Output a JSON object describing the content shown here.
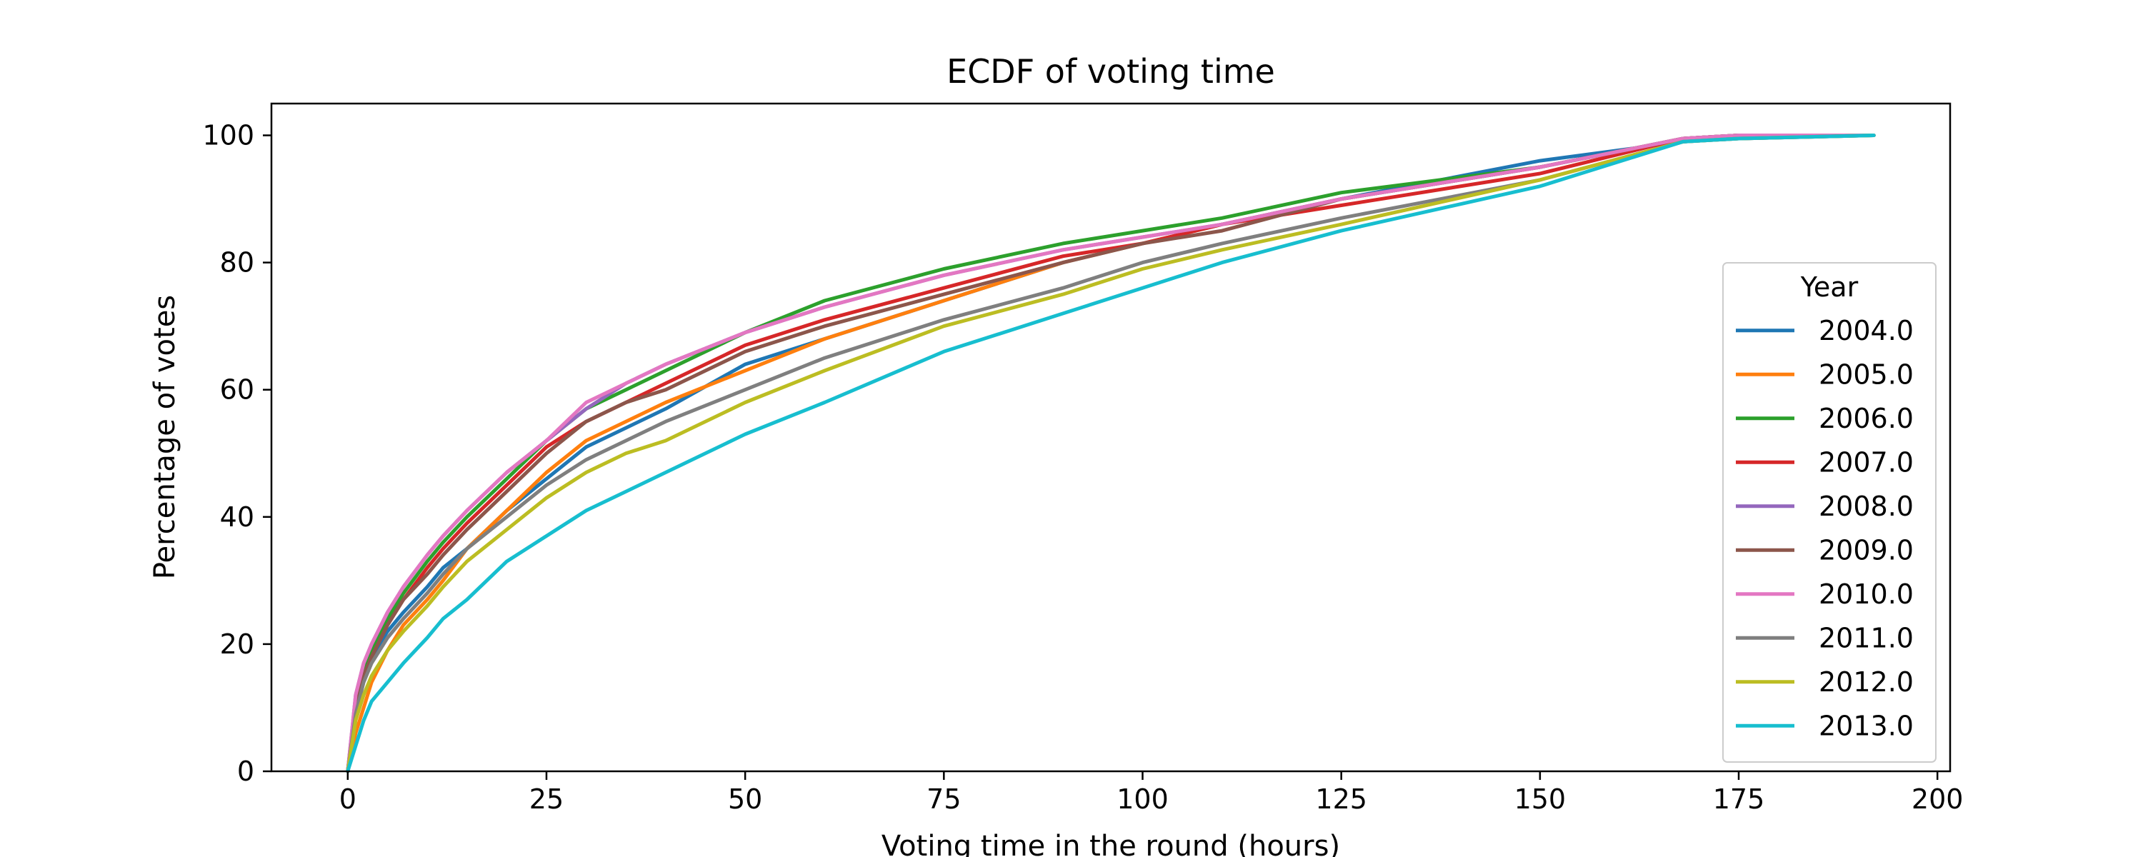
{
  "chart_data": {
    "type": "line",
    "title": "ECDF of voting time",
    "xlabel": "Voting time in the round (hours)",
    "ylabel": "Percentage of votes",
    "xlim": [
      -9.6,
      201.6
    ],
    "ylim": [
      0,
      105
    ],
    "xticks": [
      0,
      25,
      50,
      75,
      100,
      125,
      150,
      175,
      200
    ],
    "yticks": [
      0,
      20,
      40,
      60,
      80,
      100
    ],
    "grid": false,
    "legend": {
      "title": "Year",
      "position": "center-right"
    },
    "x": [
      0,
      1,
      2,
      3,
      5,
      7,
      10,
      12,
      15,
      20,
      25,
      30,
      35,
      40,
      50,
      60,
      75,
      90,
      100,
      110,
      125,
      150,
      168,
      175,
      192
    ],
    "series": [
      {
        "name": "2004.0",
        "color": "#1f77b4",
        "values": [
          0,
          10,
          15,
          18,
          22,
          25,
          29,
          32,
          35,
          41,
          46,
          51,
          54,
          57,
          64,
          68,
          74,
          80,
          83,
          86,
          90,
          96,
          99,
          99.5,
          100
        ]
      },
      {
        "name": "2005.0",
        "color": "#ff7f0e",
        "values": [
          0,
          6,
          10,
          14,
          19,
          23,
          27,
          30,
          35,
          41,
          47,
          52,
          55,
          58,
          63,
          68,
          74,
          80,
          83,
          86,
          90,
          95,
          99.5,
          100,
          100
        ]
      },
      {
        "name": "2006.0",
        "color": "#2ca02c",
        "values": [
          0,
          11,
          16,
          19,
          24,
          28,
          33,
          36,
          40,
          46,
          52,
          57,
          60,
          63,
          69,
          74,
          79,
          83,
          85,
          87,
          91,
          95,
          99.5,
          100,
          100
        ]
      },
      {
        "name": "2007.0",
        "color": "#d62728",
        "values": [
          0,
          10,
          15,
          18,
          23,
          27,
          32,
          35,
          39,
          45,
          51,
          55,
          58,
          61,
          67,
          71,
          76,
          81,
          83,
          86,
          89,
          94,
          99.5,
          100,
          100
        ]
      },
      {
        "name": "2008.0",
        "color": "#9467bd",
        "values": [
          0,
          12,
          17,
          20,
          25,
          29,
          34,
          37,
          41,
          47,
          52,
          57,
          61,
          64,
          69,
          73,
          78,
          82,
          84,
          86,
          90,
          95,
          99.5,
          100,
          100
        ]
      },
      {
        "name": "2009.0",
        "color": "#8c564b",
        "values": [
          0,
          10,
          15,
          18,
          23,
          27,
          31,
          34,
          38,
          44,
          50,
          55,
          58,
          60,
          66,
          70,
          75,
          80,
          83,
          85,
          90,
          95,
          99.5,
          100,
          100
        ]
      },
      {
        "name": "2010.0",
        "color": "#e377c2",
        "values": [
          0,
          12,
          17,
          20,
          25,
          29,
          34,
          37,
          41,
          47,
          52,
          58,
          61,
          64,
          69,
          73,
          78,
          82,
          84,
          86,
          90,
          95,
          99.5,
          100,
          100
        ]
      },
      {
        "name": "2011.0",
        "color": "#7f7f7f",
        "values": [
          0,
          9,
          14,
          17,
          21,
          24,
          28,
          31,
          35,
          40,
          45,
          49,
          52,
          55,
          60,
          65,
          71,
          76,
          80,
          83,
          87,
          93,
          99,
          99.5,
          100
        ]
      },
      {
        "name": "2012.0",
        "color": "#bcbd22",
        "values": [
          0,
          8,
          12,
          15,
          19,
          22,
          26,
          29,
          33,
          38,
          43,
          47,
          50,
          52,
          58,
          63,
          70,
          75,
          79,
          82,
          86,
          93,
          99,
          99.5,
          100
        ]
      },
      {
        "name": "2013.0",
        "color": "#17becf",
        "values": [
          0,
          4,
          8,
          11,
          14,
          17,
          21,
          24,
          27,
          33,
          37,
          41,
          44,
          47,
          53,
          58,
          66,
          72,
          76,
          80,
          85,
          92,
          99,
          99.5,
          100
        ]
      }
    ]
  }
}
